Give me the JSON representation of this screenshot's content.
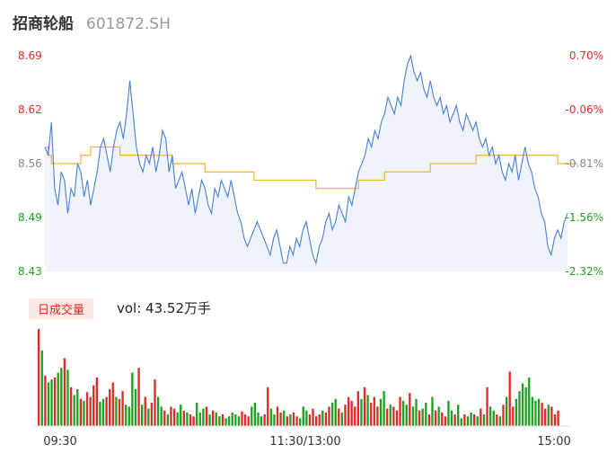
{
  "header": {
    "name": "招商轮船",
    "code": "601872.SH"
  },
  "volume_panel": {
    "tab_label": "日成交量",
    "vol_text": "vol: 43.52万手"
  },
  "colors": {
    "price_line": "#4a7fd9",
    "avg_line": "#f2b134",
    "up": "#e02a2a",
    "down": "#20a020",
    "area": "#eef3fc"
  },
  "chart_data": [
    {
      "type": "line",
      "series": [],
      "y_left_ticks": [
        "8.69",
        "8.62",
        "8.56",
        "8.49",
        "8.43"
      ],
      "y_right_ticks": [
        "0.70%",
        "-0.06%",
        "-0.81%",
        "-1.56%",
        "-2.32%"
      ],
      "y_tick_colors": [
        "#e02a2a",
        "#e02a2a",
        "#888888",
        "#20a020",
        "#20a020"
      ],
      "x_ticks": [
        "09:30",
        "11:30/13:00",
        "15:00"
      ],
      "ylim": [
        8.43,
        8.69
      ],
      "price": [
        8.58,
        8.57,
        8.61,
        8.53,
        8.51,
        8.55,
        8.54,
        8.5,
        8.53,
        8.52,
        8.56,
        8.55,
        8.52,
        8.54,
        8.51,
        8.53,
        8.55,
        8.58,
        8.59,
        8.57,
        8.55,
        8.58,
        8.6,
        8.61,
        8.59,
        8.62,
        8.66,
        8.62,
        8.58,
        8.56,
        8.55,
        8.57,
        8.56,
        8.58,
        8.55,
        8.57,
        8.6,
        8.59,
        8.55,
        8.57,
        8.53,
        8.54,
        8.55,
        8.53,
        8.51,
        8.53,
        8.5,
        8.52,
        8.54,
        8.53,
        8.51,
        8.5,
        8.53,
        8.52,
        8.54,
        8.53,
        8.52,
        8.54,
        8.52,
        8.5,
        8.49,
        8.47,
        8.46,
        8.47,
        8.48,
        8.49,
        8.48,
        8.47,
        8.46,
        8.45,
        8.47,
        8.48,
        8.46,
        8.44,
        8.44,
        8.46,
        8.45,
        8.47,
        8.46,
        8.48,
        8.49,
        8.47,
        8.45,
        8.44,
        8.46,
        8.47,
        8.49,
        8.5,
        8.48,
        8.49,
        8.51,
        8.5,
        8.49,
        8.52,
        8.51,
        8.53,
        8.55,
        8.56,
        8.57,
        8.59,
        8.58,
        8.6,
        8.59,
        8.61,
        8.62,
        8.64,
        8.63,
        8.62,
        8.64,
        8.63,
        8.66,
        8.68,
        8.69,
        8.67,
        8.66,
        8.67,
        8.65,
        8.64,
        8.66,
        8.64,
        8.63,
        8.64,
        8.62,
        8.63,
        8.61,
        8.62,
        8.63,
        8.61,
        8.6,
        8.62,
        8.61,
        8.6,
        8.61,
        8.59,
        8.58,
        8.59,
        8.57,
        8.58,
        8.56,
        8.57,
        8.55,
        8.54,
        8.56,
        8.55,
        8.57,
        8.54,
        8.56,
        8.58,
        8.56,
        8.55,
        8.53,
        8.52,
        8.5,
        8.49,
        8.46,
        8.45,
        8.47,
        8.48,
        8.47,
        8.49,
        8.5
      ],
      "avg": [
        8.58,
        8.57,
        8.56,
        8.56,
        8.56,
        8.56,
        8.56,
        8.56,
        8.56,
        8.56,
        8.56,
        8.57,
        8.57,
        8.57,
        8.58,
        8.58,
        8.58,
        8.58,
        8.58,
        8.58,
        8.58,
        8.58,
        8.58,
        8.57,
        8.57,
        8.57,
        8.57,
        8.57,
        8.57,
        8.57,
        8.57,
        8.57,
        8.57,
        8.57,
        8.57,
        8.57,
        8.57,
        8.57,
        8.57,
        8.56,
        8.56,
        8.56,
        8.56,
        8.56,
        8.56,
        8.56,
        8.56,
        8.56,
        8.56,
        8.55,
        8.55,
        8.55,
        8.55,
        8.55,
        8.55,
        8.55,
        8.55,
        8.55,
        8.55,
        8.55,
        8.55,
        8.55,
        8.55,
        8.55,
        8.54,
        8.54,
        8.54,
        8.54,
        8.54,
        8.54,
        8.54,
        8.54,
        8.54,
        8.54,
        8.54,
        8.54,
        8.54,
        8.54,
        8.54,
        8.54,
        8.54,
        8.54,
        8.54,
        8.53,
        8.53,
        8.53,
        8.53,
        8.53,
        8.53,
        8.53,
        8.53,
        8.53,
        8.53,
        8.53,
        8.53,
        8.53,
        8.54,
        8.54,
        8.54,
        8.54,
        8.54,
        8.54,
        8.54,
        8.54,
        8.55,
        8.55,
        8.55,
        8.55,
        8.55,
        8.55,
        8.55,
        8.55,
        8.55,
        8.55,
        8.55,
        8.55,
        8.55,
        8.55,
        8.56,
        8.56,
        8.56,
        8.56,
        8.56,
        8.56,
        8.56,
        8.56,
        8.56,
        8.56,
        8.56,
        8.56,
        8.56,
        8.56,
        8.57,
        8.57,
        8.57,
        8.57,
        8.57,
        8.57,
        8.57,
        8.57,
        8.57,
        8.57,
        8.57,
        8.57,
        8.57,
        8.57,
        8.57,
        8.57,
        8.57,
        8.57,
        8.57,
        8.57,
        8.57,
        8.57,
        8.57,
        8.57,
        8.57,
        8.56,
        8.56,
        8.56,
        8.56,
        8.56,
        8.56,
        8.56
      ]
    },
    {
      "type": "bar",
      "volume": [
        100,
        78,
        52,
        45,
        48,
        50,
        55,
        60,
        70,
        58,
        40,
        32,
        38,
        28,
        26,
        35,
        30,
        42,
        50,
        25,
        28,
        30,
        38,
        45,
        30,
        28,
        36,
        22,
        20,
        55,
        38,
        60,
        22,
        30,
        18,
        24,
        48,
        30,
        20,
        16,
        12,
        20,
        18,
        14,
        22,
        16,
        14,
        12,
        10,
        24,
        14,
        18,
        20,
        12,
        16,
        14,
        10,
        12,
        8,
        10,
        14,
        12,
        10,
        15,
        12,
        10,
        20,
        24,
        14,
        10,
        12,
        40,
        18,
        12,
        20,
        14,
        16,
        10,
        12,
        14,
        10,
        8,
        20,
        16,
        12,
        18,
        10,
        12,
        16,
        14,
        20,
        24,
        28,
        18,
        14,
        22,
        30,
        26,
        20,
        36,
        28,
        40,
        32,
        24,
        30,
        20,
        28,
        36,
        18,
        22,
        20,
        16,
        30,
        26,
        22,
        34,
        20,
        28,
        16,
        18,
        24,
        12,
        30,
        16,
        20,
        14,
        10,
        26,
        16,
        12,
        22,
        8,
        12,
        10,
        14,
        12,
        10,
        18,
        12,
        40,
        20,
        16,
        12,
        10,
        22,
        30,
        56,
        20,
        28,
        36,
        44,
        40,
        50,
        30,
        26,
        28,
        24,
        18,
        22,
        20,
        12,
        16
      ]
    }
  ]
}
